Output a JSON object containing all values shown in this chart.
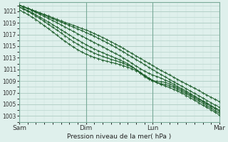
{
  "bg_color": "#dff0ec",
  "grid_color_major": "#b0cec5",
  "grid_color_minor": "#c8e0da",
  "line_color": "#1a5c28",
  "xlabel": "Pression niveau de la mer( hPa )",
  "yticks": [
    1003,
    1005,
    1007,
    1009,
    1011,
    1013,
    1015,
    1017,
    1019,
    1021
  ],
  "ylim": [
    1002.0,
    1022.5
  ],
  "xtick_labels": [
    "Sam",
    "Dim",
    "Lun",
    "Mar"
  ],
  "xtick_positions": [
    0,
    48,
    96,
    144
  ],
  "total_hours": 144
}
